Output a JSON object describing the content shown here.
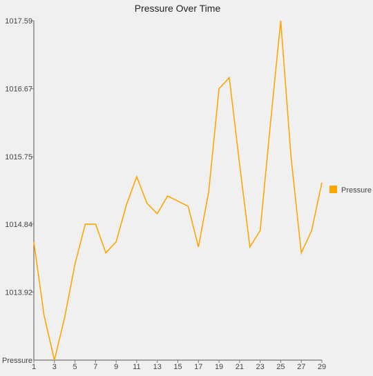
{
  "chart_data": {
    "type": "line",
    "title": "Pressure Over Time",
    "xlabel": "",
    "ylabel": "Pressure",
    "x": [
      1,
      2,
      3,
      4,
      5,
      6,
      7,
      8,
      9,
      10,
      11,
      12,
      13,
      14,
      15,
      16,
      17,
      18,
      19,
      20,
      21,
      22,
      23,
      24,
      25,
      26,
      27,
      28,
      29
    ],
    "x_tick_labels": [
      "1",
      "3",
      "5",
      "7",
      "9",
      "11",
      "13",
      "15",
      "17",
      "19",
      "21",
      "23",
      "25",
      "27",
      "29"
    ],
    "y_tick_labels": [
      "1013.92",
      "1014.84",
      "1015.75",
      "1016.67",
      "1017.59"
    ],
    "y_ticks": [
      1013.92,
      1014.84,
      1015.75,
      1016.67,
      1017.59
    ],
    "ylim": [
      1013.0,
      1017.59
    ],
    "xlim": [
      1,
      29
    ],
    "series": [
      {
        "name": "Pressure",
        "color": "#ffa500",
        "values": [
          1014.6,
          1013.6,
          1013.0,
          1013.58,
          1014.3,
          1014.84,
          1014.84,
          1014.45,
          1014.6,
          1015.1,
          1015.48,
          1015.12,
          1014.98,
          1015.22,
          1015.15,
          1015.08,
          1014.53,
          1015.28,
          1016.67,
          1016.82,
          1015.65,
          1014.53,
          1014.75,
          1016.2,
          1017.59,
          1015.75,
          1014.45,
          1014.75,
          1015.4
        ]
      }
    ],
    "legend": {
      "position": "right",
      "entries": [
        "Pressure"
      ]
    },
    "grid": false
  }
}
